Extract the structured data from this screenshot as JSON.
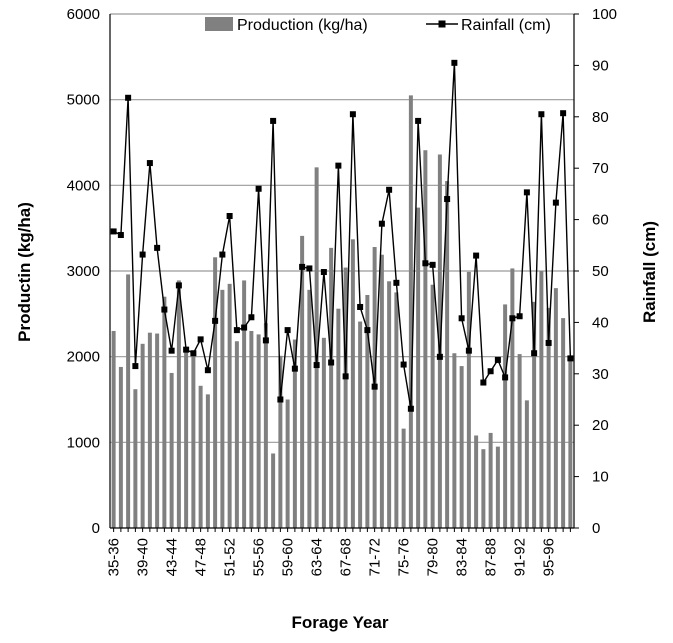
{
  "chart_data": {
    "type": "bar",
    "title": "",
    "xlabel": "Forage Year",
    "ylabel": "Productin (kg/ha)",
    "y2label": "Rainfall (cm)",
    "ylim": [
      0,
      6000
    ],
    "y2lim": [
      0,
      100
    ],
    "yticks": [
      "0",
      "1000",
      "2000",
      "3000",
      "4000",
      "5000",
      "6000"
    ],
    "y2ticks": [
      "0",
      "10",
      "20",
      "30",
      "40",
      "50",
      "60",
      "70",
      "80",
      "90",
      "100"
    ],
    "grid": true,
    "legend_position": "top",
    "colors": {
      "bars": "#808080",
      "line": "#000000",
      "grid": "#9a9a9a"
    },
    "categories": [
      "35-36",
      "36-37",
      "37-38",
      "38-39",
      "39-40",
      "40-41",
      "41-42",
      "42-43",
      "43-44",
      "44-45",
      "45-46",
      "46-47",
      "47-48",
      "48-49",
      "49-50",
      "50-51",
      "51-52",
      "52-53",
      "53-54",
      "54-55",
      "55-56",
      "56-57",
      "57-58",
      "58-59",
      "59-60",
      "60-61",
      "61-62",
      "62-63",
      "63-64",
      "64-65",
      "65-66",
      "66-67",
      "67-68",
      "68-69",
      "69-70",
      "70-71",
      "71-72",
      "72-73",
      "73-74",
      "74-75",
      "75-76",
      "76-77",
      "77-78",
      "78-79",
      "79-80",
      "80-81",
      "81-82",
      "82-83",
      "83-84",
      "84-85",
      "85-86",
      "86-87",
      "87-88",
      "88-89",
      "89-90",
      "90-91",
      "91-92",
      "92-93",
      "93-94",
      "94-95",
      "95-96",
      "96-97",
      "97-98",
      "98-99"
    ],
    "tick_labels": [
      "35-36",
      "39-40",
      "43-44",
      "47-48",
      "51-52",
      "55-56",
      "59-60",
      "63-64",
      "67-68",
      "71-72",
      "75-76",
      "79-80",
      "83-84",
      "87-88",
      "91-92",
      "95-96"
    ],
    "series": [
      {
        "name": "Production (kg/ha)",
        "type": "bar",
        "axis": "left",
        "values": [
          2300,
          1880,
          2960,
          1620,
          2150,
          2280,
          2270,
          2700,
          1810,
          2890,
          2050,
          2040,
          1660,
          1560,
          3160,
          2780,
          2850,
          2180,
          2890,
          2300,
          2260,
          2390,
          870,
          2010,
          1500,
          2200,
          3410,
          2780,
          4210,
          2220,
          3270,
          2560,
          3040,
          3370,
          2410,
          2720,
          3280,
          3190,
          2880,
          2750,
          1160,
          5050,
          3740,
          4410,
          2840,
          4360,
          4050,
          2040,
          1890,
          2990,
          1080,
          920,
          1110,
          950,
          2610,
          3030,
          2030,
          1490,
          2640,
          3000,
          2570,
          2800,
          2450,
          2000
        ]
      },
      {
        "name": "Rainfall (cm)",
        "type": "line",
        "axis": "right",
        "marker": "square",
        "values": [
          57.7,
          57.0,
          83.7,
          31.5,
          53.2,
          71.0,
          54.5,
          42.5,
          34.5,
          47.2,
          34.7,
          34.0,
          36.7,
          30.7,
          40.3,
          53.2,
          60.7,
          38.5,
          39.0,
          41.0,
          66.0,
          36.5,
          79.2,
          25.0,
          38.5,
          31.0,
          50.8,
          50.5,
          31.7,
          49.8,
          32.2,
          70.5,
          29.5,
          80.5,
          43.0,
          38.5,
          27.5,
          59.2,
          65.8,
          47.7,
          31.8,
          23.2,
          79.2,
          51.5,
          51.2,
          33.3,
          64.0,
          90.5,
          40.8,
          34.5,
          53.0,
          28.3,
          30.5,
          32.7,
          29.3,
          40.8,
          41.2,
          65.3,
          34.0,
          80.5,
          36.0,
          63.3,
          80.7,
          33.0
        ]
      }
    ]
  }
}
